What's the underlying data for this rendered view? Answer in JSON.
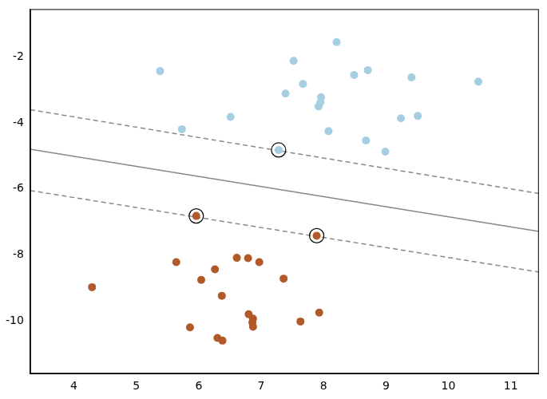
{
  "chart_data": {
    "type": "scatter",
    "xlim": [
      3.3,
      11.45
    ],
    "ylim": [
      -11.6,
      -0.55
    ],
    "xticks": [
      4,
      5,
      6,
      7,
      8,
      9,
      10,
      11
    ],
    "yticks": [
      -10,
      -8,
      -6,
      -4,
      -2
    ],
    "grid": false,
    "series": [
      {
        "color": "#a6cee3",
        "marker": "circle",
        "x": [
          5.38,
          7.52,
          8.21,
          7.67,
          8.49,
          8.71,
          9.41,
          10.48,
          7.39,
          7.96,
          7.95,
          7.92,
          6.51,
          5.73,
          8.08,
          9.24,
          9.51,
          8.68,
          8.99,
          7.28
        ],
        "values": [
          -2.43,
          -2.12,
          -1.55,
          -2.82,
          -2.55,
          -2.4,
          -2.62,
          -2.75,
          -3.11,
          -3.22,
          -3.38,
          -3.5,
          -3.82,
          -4.19,
          -4.25,
          -3.86,
          -3.79,
          -4.53,
          -4.87,
          -4.82
        ]
      },
      {
        "color": "#b15928",
        "marker": "circle",
        "x": [
          4.29,
          5.64,
          6.04,
          6.26,
          6.61,
          6.79,
          6.97,
          7.36,
          6.37,
          6.8,
          6.87,
          6.86,
          6.87,
          5.86,
          7.63,
          7.93,
          6.3,
          6.38,
          5.96,
          7.89
        ],
        "values": [
          -8.98,
          -8.22,
          -8.76,
          -8.44,
          -8.09,
          -8.1,
          -8.22,
          -8.72,
          -9.24,
          -9.8,
          -9.93,
          -10.05,
          -10.18,
          -10.2,
          -10.02,
          -9.75,
          -10.52,
          -10.6,
          -6.82,
          -7.42
        ]
      },
      {
        "type": "line",
        "color": "#888888",
        "line_style": "solid",
        "x": [
          3.3,
          11.45
        ],
        "values": [
          -4.8,
          -7.29
        ]
      },
      {
        "type": "line",
        "color": "#888888",
        "line_style": "dashed",
        "x": [
          3.3,
          11.45
        ],
        "values": [
          -3.6,
          -6.14
        ]
      },
      {
        "type": "line",
        "color": "#888888",
        "line_style": "dashed",
        "x": [
          3.3,
          11.45
        ],
        "values": [
          -6.05,
          -8.52
        ]
      },
      {
        "color": "#000000",
        "marker": "ring",
        "x": [
          7.28,
          5.96,
          7.89
        ],
        "values": [
          -4.82,
          -6.82,
          -7.42
        ]
      }
    ]
  }
}
